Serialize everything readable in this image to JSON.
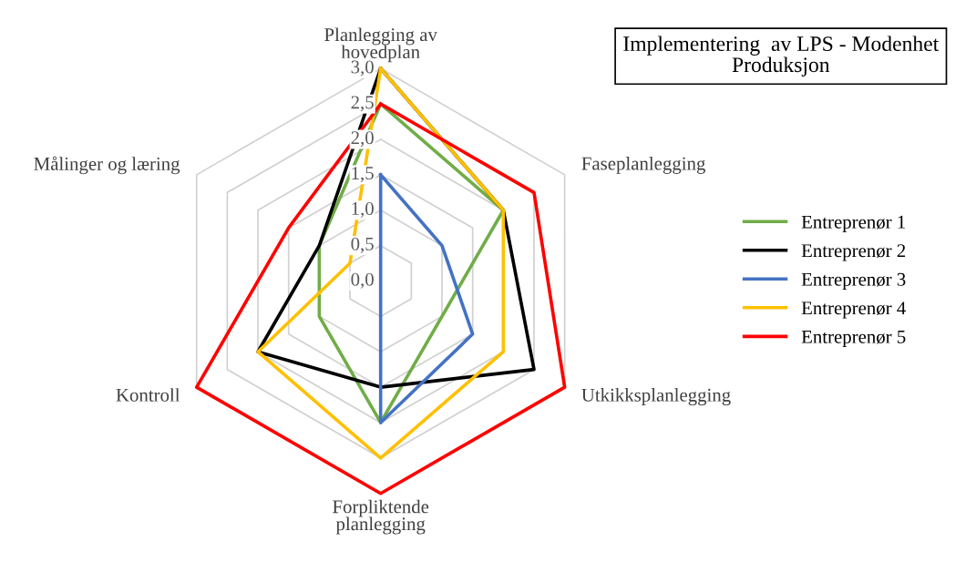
{
  "chart_data": {
    "type": "radar",
    "title": "Implementering  av LPS - Modenhet\nProduksjon",
    "categories": [
      "Planlegging av\nhovedplan",
      "Faseplanlegging",
      "Utkikksplanlegging",
      "Forpliktende\nplanlegging",
      "Kontroll",
      "Målinger og læring"
    ],
    "ylim": [
      0,
      3
    ],
    "yticks": [
      {
        "value": 0,
        "label": "0,0"
      },
      {
        "value": 0.5,
        "label": "0,5"
      },
      {
        "value": 1,
        "label": "1,0"
      },
      {
        "value": 1.5,
        "label": "1,5"
      },
      {
        "value": 2,
        "label": "2,0"
      },
      {
        "value": 2.5,
        "label": "2,5"
      },
      {
        "value": 3,
        "label": "3,0"
      }
    ],
    "grid": true,
    "legend": "right",
    "marker": "none",
    "line_style": "solid",
    "series": [
      {
        "name": "Entreprenør 1",
        "color": "#70ad47",
        "values": [
          2.5,
          2.0,
          null,
          2.0,
          1.0,
          1.0
        ]
      },
      {
        "name": "Entreprenør 2",
        "color": "#000000",
        "values": [
          3.0,
          2.0,
          2.5,
          1.5,
          2.0,
          1.0
        ]
      },
      {
        "name": "Entreprenør 3",
        "color": "#4472c4",
        "values": [
          1.5,
          1.0,
          1.5,
          2.0,
          0,
          0
        ]
      },
      {
        "name": "Entreprenør 4",
        "color": "#ffc000",
        "values": [
          3.0,
          2.0,
          2.0,
          2.5,
          2.0,
          0.5
        ]
      },
      {
        "name": "Entreprenør 5",
        "color": "#ff0000",
        "values": [
          2.5,
          2.5,
          3.0,
          3.0,
          3.0,
          1.5
        ]
      }
    ]
  }
}
